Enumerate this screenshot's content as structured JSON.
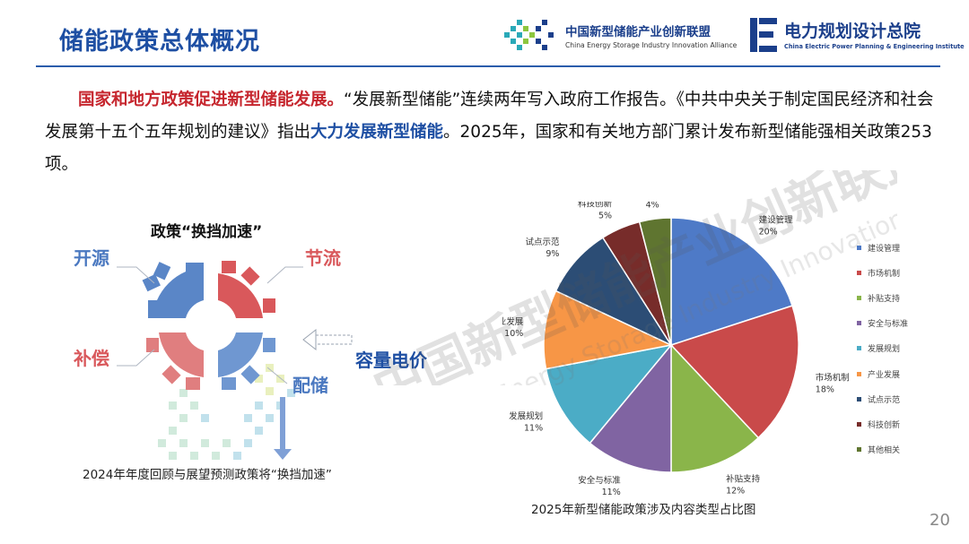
{
  "header": {
    "title": "储能政策总体概况",
    "logo_alliance_cn": "中国新型储能产业创新联盟",
    "logo_alliance_en": "China Energy Storage Industry Innovation Alliance",
    "logo_institute_cn": "电力规划设计总院",
    "logo_institute_en": "China Electric Power Planning & Engineering Institute"
  },
  "intro": {
    "lead": "国家和地方政策促进新型储能发展。",
    "part1": "“发展新型储能”连续两年写入政府工作报告。《中共中央关于制定国民经济和社会发展第十五个五年规划的建议》指出",
    "emphasis": "大力发展新型储能",
    "part2": "。2025年，国家和有关地方部门累计发布新型储能强相关政策253项。"
  },
  "gear_diagram": {
    "title": "政策“换挡加速”",
    "label_top_left": "开源",
    "label_top_right": "节流",
    "label_bottom_left": "补偿",
    "label_right": "容量电价",
    "label_bottom_right": "配储",
    "caption": "2024年年度回顾与展望预测政策将“换挡加速”"
  },
  "chart_data": {
    "type": "pie",
    "title": "2025年新型储能政策涉及内容类型占比图",
    "legend_position": "right",
    "categories": [
      "建设管理",
      "市场机制",
      "补贴支持",
      "安全与标准",
      "发展规划",
      "产业发展",
      "试点示范",
      "科技创新",
      "其他相关"
    ],
    "values": [
      20,
      18,
      12,
      11,
      11,
      10,
      9,
      5,
      4
    ],
    "value_labels": [
      "20%",
      "18%",
      "12%",
      "11%",
      "11%",
      "10%",
      "9%",
      "5%",
      "4%"
    ],
    "colors": [
      "#4e7ac7",
      "#c94a4a",
      "#8ab54a",
      "#8064a2",
      "#4bacc6",
      "#f79646",
      "#2c4d75",
      "#772c2a",
      "#5f7530"
    ]
  },
  "watermark": {
    "cn": "中国新型储能产业创新联盟",
    "en": "China Energy Storage Industry Innovation Alliance"
  },
  "footer": {
    "page_number": "20"
  }
}
